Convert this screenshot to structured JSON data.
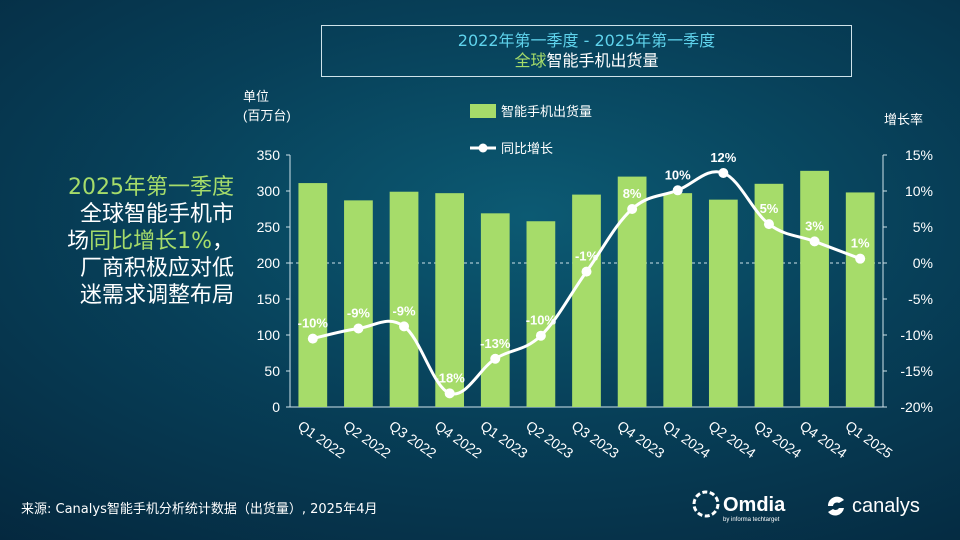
{
  "title": {
    "line1": "2022年第一季度 - 2025年第一季度",
    "line2_highlight": "全球",
    "line2_rest": "智能手机出货量"
  },
  "headline": {
    "line1": "2025年第一季度",
    "line2": "全球智能手机市",
    "line3_pre": "场",
    "line3_hl": "同比增长1%",
    "line3_post": "，",
    "line4": "厂商积极应对低",
    "line5": "迷需求调整布局"
  },
  "source": "来源: Canalys智能手机分析统计数据（出货量）, 2025年4月",
  "logos": {
    "omdia": "Omdia",
    "omdia_sub": "by informa techtarget",
    "canalys": "canalys"
  },
  "colors": {
    "bar": "#a6dc6a",
    "line": "#ffffff",
    "title_accent": "#5fd3ec",
    "highlight": "#a6dc6a"
  },
  "chart_data": {
    "type": "bar",
    "categories": [
      "Q1 2022",
      "Q2 2022",
      "Q3 2022",
      "Q4 2022",
      "Q1 2023",
      "Q2 2023",
      "Q3 2023",
      "Q4 2023",
      "Q1 2024",
      "Q2 2024",
      "Q3 2024",
      "Q4 2024",
      "Q1 2025"
    ],
    "series": [
      {
        "name": "智能手机出货量",
        "type": "bar",
        "axis": "left",
        "values": [
          311,
          287,
          299,
          297,
          269,
          258,
          295,
          320,
          297,
          288,
          310,
          328,
          298
        ]
      },
      {
        "name": "同比增长",
        "type": "line",
        "axis": "right",
        "values": [
          -10.5,
          -9.1,
          -8.8,
          -18.1,
          -13.3,
          -10.1,
          -1.2,
          7.5,
          10.1,
          12.5,
          5.4,
          3.0,
          0.6
        ],
        "labels": [
          "-10%",
          "-9%",
          "-9%",
          "-18%",
          "-13%",
          "-10%",
          "-1%",
          "8%",
          "10%",
          "12%",
          "5%",
          "3%",
          "1%"
        ]
      }
    ],
    "ylabel_line1": "单位",
    "ylabel_line2": "(百万台)",
    "y2label": "增长率",
    "ylim": [
      0,
      350
    ],
    "yticks": [
      "0",
      "50",
      "100",
      "150",
      "200",
      "250",
      "300",
      "350"
    ],
    "y2lim": [
      -20,
      15
    ],
    "y2ticks": [
      "-20%",
      "-15%",
      "-10%",
      "-5%",
      "0%",
      "5%",
      "10%",
      "15%"
    ],
    "legend": [
      "智能手机出货量",
      "同比增长"
    ],
    "legend_position": "top-center",
    "grid": false
  }
}
